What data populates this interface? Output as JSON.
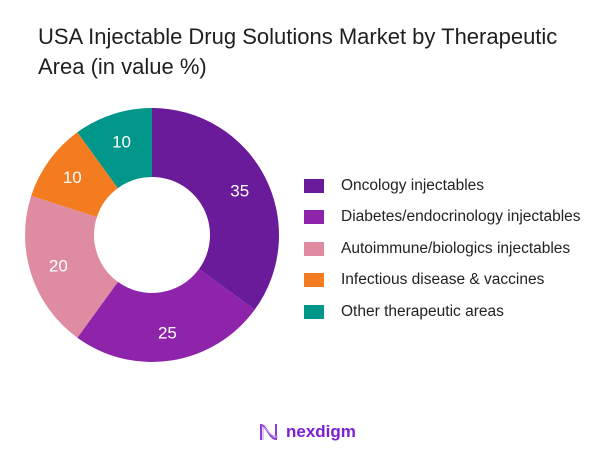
{
  "chart_data": {
    "type": "pie",
    "variant": "donut",
    "title": "USA Injectable Drug Solutions Market by Therapeutic Area (in value %)",
    "categories": [
      "Oncology injectables",
      "Diabetes/endocrinology injectables",
      "Autoimmune/biologics injectables",
      "Infectious disease & vaccines",
      "Other therapeutic areas"
    ],
    "values": [
      35,
      25,
      20,
      10,
      10
    ],
    "colors": [
      "#6a1b9a",
      "#8e24aa",
      "#df8ca2",
      "#f47c20",
      "#00968a"
    ],
    "data_labels": [
      "35",
      "25",
      "20",
      "10",
      "10"
    ],
    "legend_position": "right"
  },
  "logo": {
    "text": "nexdigm"
  }
}
